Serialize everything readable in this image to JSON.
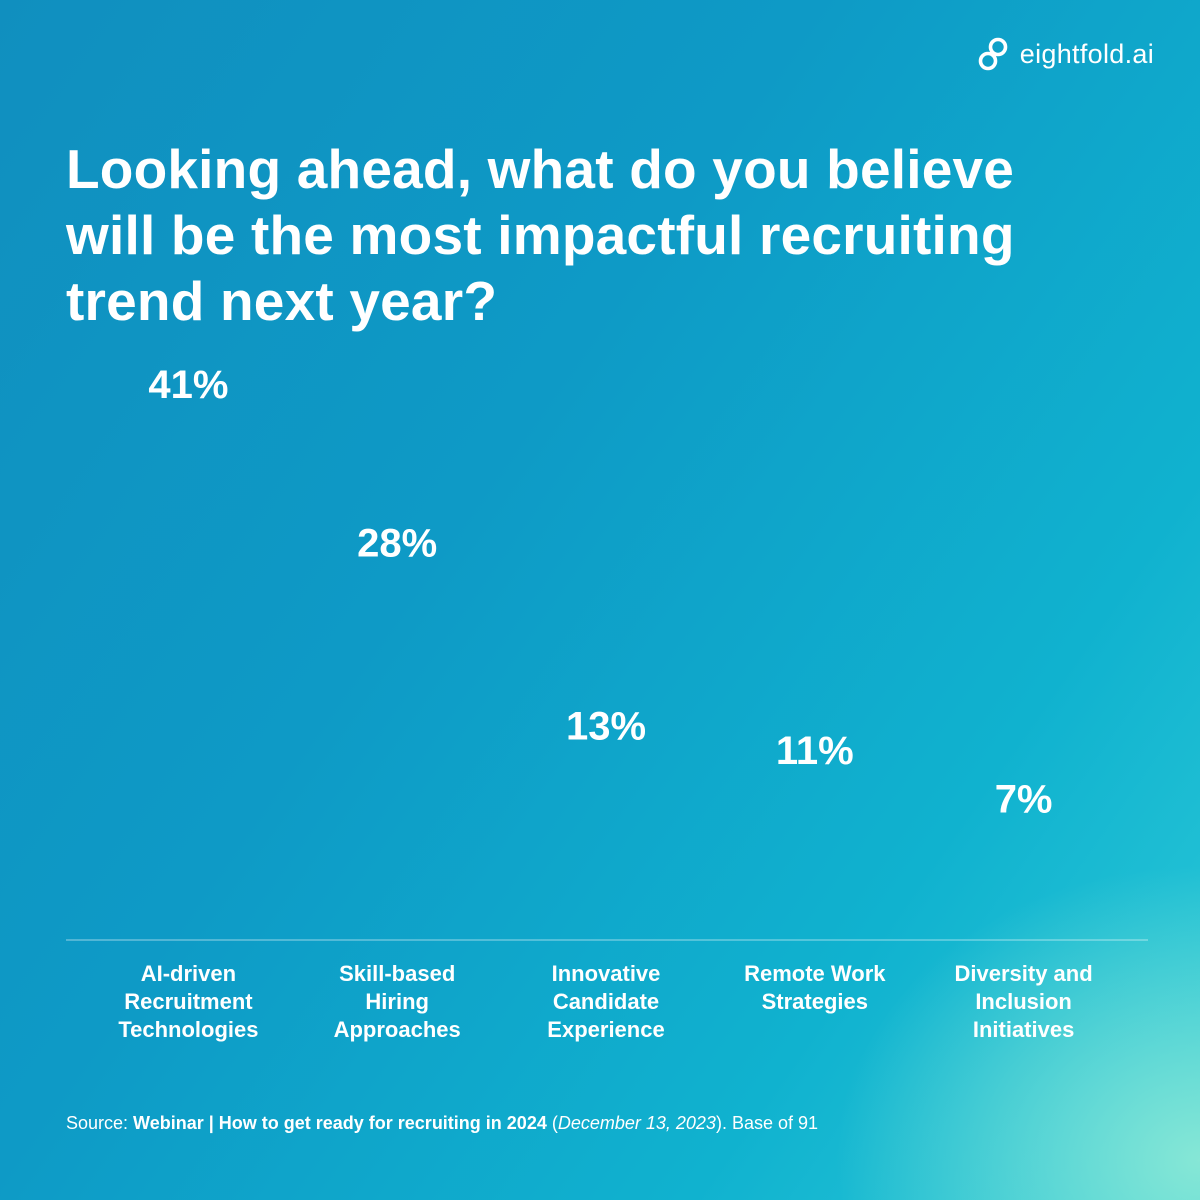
{
  "brand": {
    "name": "eightfold.ai",
    "logo_icon": "infinity-loop-icon"
  },
  "chart_data": {
    "type": "bar",
    "title": "Looking ahead, what do you believe will be the most impactful recruiting trend next year?",
    "categories": [
      [
        "AI-driven",
        "Recruitment",
        "Technologies"
      ],
      [
        "Skill-based",
        "Hiring",
        "Approaches"
      ],
      [
        "Innovative",
        "Candidate",
        "Experience"
      ],
      [
        "Remote Work",
        "Strategies"
      ],
      [
        "Diversity and",
        "Inclusion",
        "Initiatives"
      ]
    ],
    "values": [
      41,
      28,
      13,
      11,
      7
    ],
    "value_labels": [
      "41%",
      "28%",
      "13%",
      "11%",
      "7%"
    ],
    "unit": "%",
    "ylim": [
      0,
      50
    ],
    "grid": false,
    "legend": "none"
  },
  "source": {
    "prefix": "Source: ",
    "event": "Webinar | How to get ready for recruiting in 2024",
    "open_paren": " (",
    "date": "December 13, 2023",
    "suffix": "). Base of 91"
  },
  "colors": {
    "background_start": "#108fbf",
    "background_end": "#2ccad8",
    "text": "#ffffff"
  }
}
